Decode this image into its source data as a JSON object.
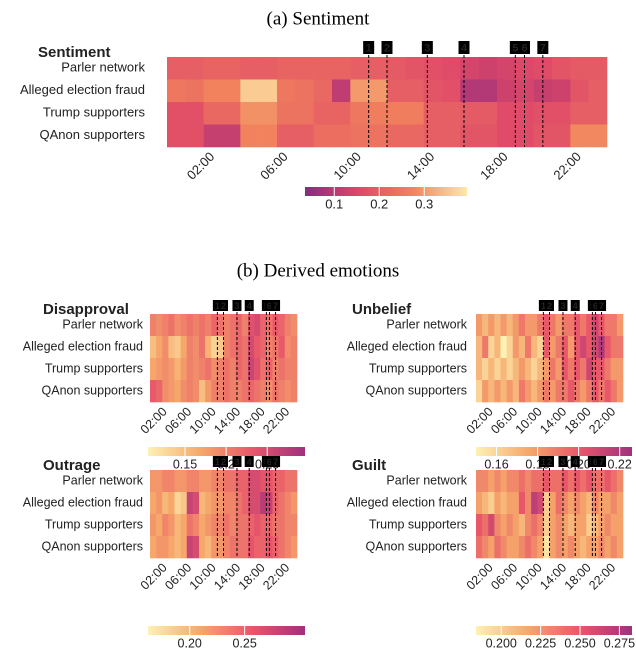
{
  "panel_a": "(a) Sentiment",
  "panel_b": "(b) Derived emotions",
  "events": [
    {
      "label": "1",
      "x": 11.0
    },
    {
      "label": "2",
      "x": 12.0
    },
    {
      "label": "3",
      "x": 14.2
    },
    {
      "label": "4",
      "x": 16.2
    },
    {
      "label": "5",
      "x": 19.0
    },
    {
      "label": "6",
      "x": 19.5
    },
    {
      "label": "7",
      "x": 20.5
    }
  ],
  "chart_data": [
    {
      "type": "heatmap",
      "title": "Sentiment",
      "categories": [
        null,
        null,
        "02:00",
        null,
        null,
        null,
        "06:00",
        null,
        null,
        null,
        "10:00",
        null,
        null,
        null,
        "14:00",
        null,
        null,
        null,
        "18:00",
        null,
        null,
        null,
        "22:00",
        null
      ],
      "rows": [
        "Parler network",
        "Alleged election fraud",
        "Trump supporters",
        "QAnon supporters"
      ],
      "values": [
        [
          0.2,
          0.2,
          0.21,
          0.21,
          0.2,
          0.2,
          0.21,
          0.21,
          0.21,
          0.21,
          0.2,
          0.2,
          0.19,
          0.18,
          0.17,
          0.16,
          0.14,
          0.13,
          0.14,
          0.15,
          0.16,
          0.18,
          0.19,
          0.19
        ],
        [
          0.25,
          0.24,
          0.27,
          0.27,
          0.36,
          0.36,
          0.25,
          0.24,
          0.22,
          0.11,
          0.3,
          0.3,
          0.2,
          0.2,
          0.18,
          0.17,
          0.09,
          0.09,
          0.13,
          0.14,
          0.12,
          0.13,
          0.18,
          0.2
        ],
        [
          0.17,
          0.17,
          0.22,
          0.22,
          0.29,
          0.29,
          0.24,
          0.24,
          0.21,
          0.21,
          0.25,
          0.26,
          0.26,
          0.26,
          0.2,
          0.2,
          0.19,
          0.19,
          0.16,
          0.16,
          0.17,
          0.17,
          0.2,
          0.2
        ],
        [
          0.17,
          0.17,
          0.12,
          0.12,
          0.27,
          0.27,
          0.2,
          0.2,
          0.23,
          0.23,
          0.24,
          0.24,
          0.22,
          0.22,
          0.2,
          0.2,
          0.18,
          0.18,
          0.16,
          0.16,
          0.18,
          0.18,
          0.28,
          0.28
        ]
      ],
      "clim": [
        0.035,
        0.395
      ],
      "cticks": [
        0.1,
        0.2,
        0.3
      ],
      "colors": [
        "#8c2981",
        "#de4968",
        "#f2845c",
        "#fde9a9"
      ]
    },
    {
      "type": "heatmap",
      "title": "Disapproval",
      "categories": [
        null,
        null,
        "02:00",
        null,
        null,
        null,
        "06:00",
        null,
        null,
        null,
        "10:00",
        null,
        null,
        null,
        "14:00",
        null,
        null,
        null,
        "18:00",
        null,
        null,
        null,
        "22:00",
        null
      ],
      "rows": [
        "Parler network",
        "Alleged election fraud",
        "Trump supporters",
        "QAnon supporters"
      ],
      "values": [
        [
          0.2,
          0.19,
          0.2,
          0.21,
          0.19,
          0.2,
          0.21,
          0.2,
          0.21,
          0.2,
          0.22,
          0.21,
          0.2,
          0.21,
          0.22,
          0.2,
          0.24,
          0.25,
          0.22,
          0.21,
          0.23,
          0.22,
          0.2,
          0.19
        ],
        [
          0.15,
          0.17,
          0.19,
          0.15,
          0.14,
          0.17,
          0.2,
          0.19,
          0.21,
          0.16,
          0.13,
          0.14,
          0.2,
          0.21,
          0.22,
          0.21,
          0.25,
          0.23,
          0.22,
          0.2,
          0.21,
          0.23,
          0.19,
          0.2
        ],
        [
          0.17,
          0.18,
          0.19,
          0.18,
          0.16,
          0.18,
          0.2,
          0.19,
          0.2,
          0.21,
          0.19,
          0.2,
          0.21,
          0.2,
          0.22,
          0.21,
          0.26,
          0.24,
          0.21,
          0.22,
          0.2,
          0.21,
          0.2,
          0.2
        ],
        [
          0.23,
          0.22,
          0.19,
          0.18,
          0.17,
          0.19,
          0.2,
          0.19,
          0.15,
          0.18,
          0.2,
          0.2,
          0.21,
          0.2,
          0.2,
          0.21,
          0.22,
          0.21,
          0.2,
          0.19,
          0.21,
          0.2,
          0.19,
          0.2
        ]
      ],
      "clim": [
        0.105,
        0.296
      ],
      "cticks": [
        0.15,
        0.2,
        0.25
      ],
      "colors": [
        "#fdf1b4",
        "#f6a86a",
        "#e8566a",
        "#a0307e"
      ]
    },
    {
      "type": "heatmap",
      "title": "Unbelief",
      "categories": [
        null,
        null,
        "02:00",
        null,
        null,
        null,
        "06:00",
        null,
        null,
        null,
        "10:00",
        null,
        null,
        null,
        "14:00",
        null,
        null,
        null,
        "18:00",
        null,
        null,
        null,
        "22:00",
        null
      ],
      "rows": [
        "Parler network",
        "Alleged election fraud",
        "Trump supporters",
        "QAnon supporters"
      ],
      "values": [
        [
          0.18,
          0.17,
          0.18,
          0.17,
          0.18,
          0.17,
          0.18,
          0.19,
          0.18,
          0.18,
          0.19,
          0.2,
          0.19,
          0.18,
          0.19,
          0.19,
          0.2,
          0.19,
          0.2,
          0.21,
          0.2,
          0.19,
          0.19,
          0.18
        ],
        [
          0.17,
          0.19,
          0.16,
          0.17,
          0.15,
          0.16,
          0.18,
          0.17,
          0.19,
          0.17,
          0.16,
          0.2,
          0.18,
          0.19,
          0.2,
          0.18,
          0.2,
          0.21,
          0.2,
          0.21,
          0.22,
          0.2,
          0.19,
          0.19
        ],
        [
          0.17,
          0.16,
          0.17,
          0.16,
          0.17,
          0.16,
          0.17,
          0.18,
          0.17,
          0.16,
          0.17,
          0.18,
          0.19,
          0.18,
          0.2,
          0.19,
          0.2,
          0.19,
          0.21,
          0.2,
          0.2,
          0.19,
          0.18,
          0.18
        ],
        [
          0.16,
          0.18,
          0.17,
          0.18,
          0.17,
          0.18,
          0.17,
          0.19,
          0.18,
          0.17,
          0.18,
          0.19,
          0.18,
          0.19,
          0.19,
          0.2,
          0.19,
          0.18,
          0.19,
          0.2,
          0.19,
          0.2,
          0.19,
          0.18
        ]
      ],
      "clim": [
        0.15,
        0.226
      ],
      "cticks": [
        0.16,
        0.18,
        {
          "value": 0.2,
          "label": "0.20"
        },
        0.22
      ],
      "colors": [
        "#fdf1b4",
        "#f6a86a",
        "#e8566a",
        "#a0307e"
      ]
    },
    {
      "type": "heatmap",
      "title": "Outrage",
      "categories": [
        null,
        null,
        "02:00",
        null,
        null,
        null,
        "06:00",
        null,
        null,
        null,
        "10:00",
        null,
        null,
        null,
        "14:00",
        null,
        null,
        null,
        "18:00",
        null,
        null,
        null,
        "22:00",
        null
      ],
      "rows": [
        "Parler network",
        "Alleged election fraud",
        "Trump supporters",
        "QAnon supporters"
      ],
      "values": [
        [
          0.22,
          0.22,
          0.23,
          0.23,
          0.22,
          0.22,
          0.23,
          0.23,
          0.22,
          0.22,
          0.23,
          0.23,
          0.24,
          0.24,
          0.25,
          0.25,
          0.27,
          0.27,
          0.26,
          0.26,
          0.25,
          0.25,
          0.24,
          0.24
        ],
        [
          0.21,
          0.22,
          0.2,
          0.21,
          0.18,
          0.19,
          0.28,
          0.27,
          0.2,
          0.21,
          0.22,
          0.22,
          0.23,
          0.23,
          0.24,
          0.25,
          0.27,
          0.27,
          0.29,
          0.28,
          0.25,
          0.24,
          0.23,
          0.22
        ],
        [
          0.22,
          0.21,
          0.23,
          0.22,
          0.2,
          0.21,
          0.24,
          0.23,
          0.21,
          0.22,
          0.23,
          0.23,
          0.24,
          0.23,
          0.24,
          0.24,
          0.25,
          0.26,
          0.25,
          0.25,
          0.24,
          0.24,
          0.23,
          0.23
        ],
        [
          0.21,
          0.22,
          0.22,
          0.21,
          0.2,
          0.21,
          0.28,
          0.27,
          0.21,
          0.2,
          0.22,
          0.22,
          0.23,
          0.24,
          0.24,
          0.24,
          0.26,
          0.25,
          0.25,
          0.26,
          0.25,
          0.24,
          0.23,
          0.22
        ]
      ],
      "clim": [
        0.162,
        0.305
      ],
      "cticks": [
        {
          "value": 0.2,
          "label": "0.20"
        },
        0.25
      ],
      "colors": [
        "#fdf1b4",
        "#f6a86a",
        "#e8566a",
        "#a0307e"
      ]
    },
    {
      "type": "heatmap",
      "title": "Guilt",
      "categories": [
        null,
        null,
        "02:00",
        null,
        null,
        null,
        "06:00",
        null,
        null,
        null,
        "10:00",
        null,
        null,
        null,
        "14:00",
        null,
        null,
        null,
        "18:00",
        null,
        null,
        null,
        "22:00",
        null
      ],
      "rows": [
        "Parler network",
        "Alleged election fraud",
        "Trump supporters",
        "QAnon supporters"
      ],
      "values": [
        [
          0.23,
          0.23,
          0.22,
          0.23,
          0.22,
          0.23,
          0.23,
          0.24,
          0.23,
          0.24,
          0.24,
          0.25,
          0.24,
          0.24,
          0.25,
          0.24,
          0.25,
          0.24,
          0.25,
          0.24,
          0.24,
          0.25,
          0.24,
          0.23
        ],
        [
          0.22,
          0.21,
          0.2,
          0.22,
          0.21,
          0.22,
          0.22,
          0.25,
          0.23,
          0.27,
          0.26,
          0.2,
          0.22,
          0.24,
          0.23,
          0.22,
          0.23,
          0.22,
          0.21,
          0.23,
          0.22,
          0.22,
          0.23,
          0.22
        ],
        [
          0.25,
          0.24,
          0.26,
          0.23,
          0.22,
          0.23,
          0.22,
          0.21,
          0.23,
          0.24,
          0.23,
          0.2,
          0.22,
          0.23,
          0.22,
          0.21,
          0.22,
          0.22,
          0.2,
          0.21,
          0.22,
          0.23,
          0.22,
          0.22
        ],
        [
          0.24,
          0.23,
          0.22,
          0.24,
          0.23,
          0.22,
          0.22,
          0.23,
          0.24,
          0.23,
          0.22,
          0.19,
          0.22,
          0.23,
          0.22,
          0.23,
          0.22,
          0.21,
          0.22,
          0.22,
          0.23,
          0.22,
          0.23,
          0.22
        ]
      ],
      "clim": [
        0.184,
        0.283
      ],
      "cticks": [
        {
          "value": 0.2,
          "label": "0.200"
        },
        0.225,
        {
          "value": 0.25,
          "label": "0.250"
        },
        0.275
      ],
      "colors": [
        "#fdf1b4",
        "#f6a86a",
        "#e8566a",
        "#a0307e"
      ]
    }
  ]
}
